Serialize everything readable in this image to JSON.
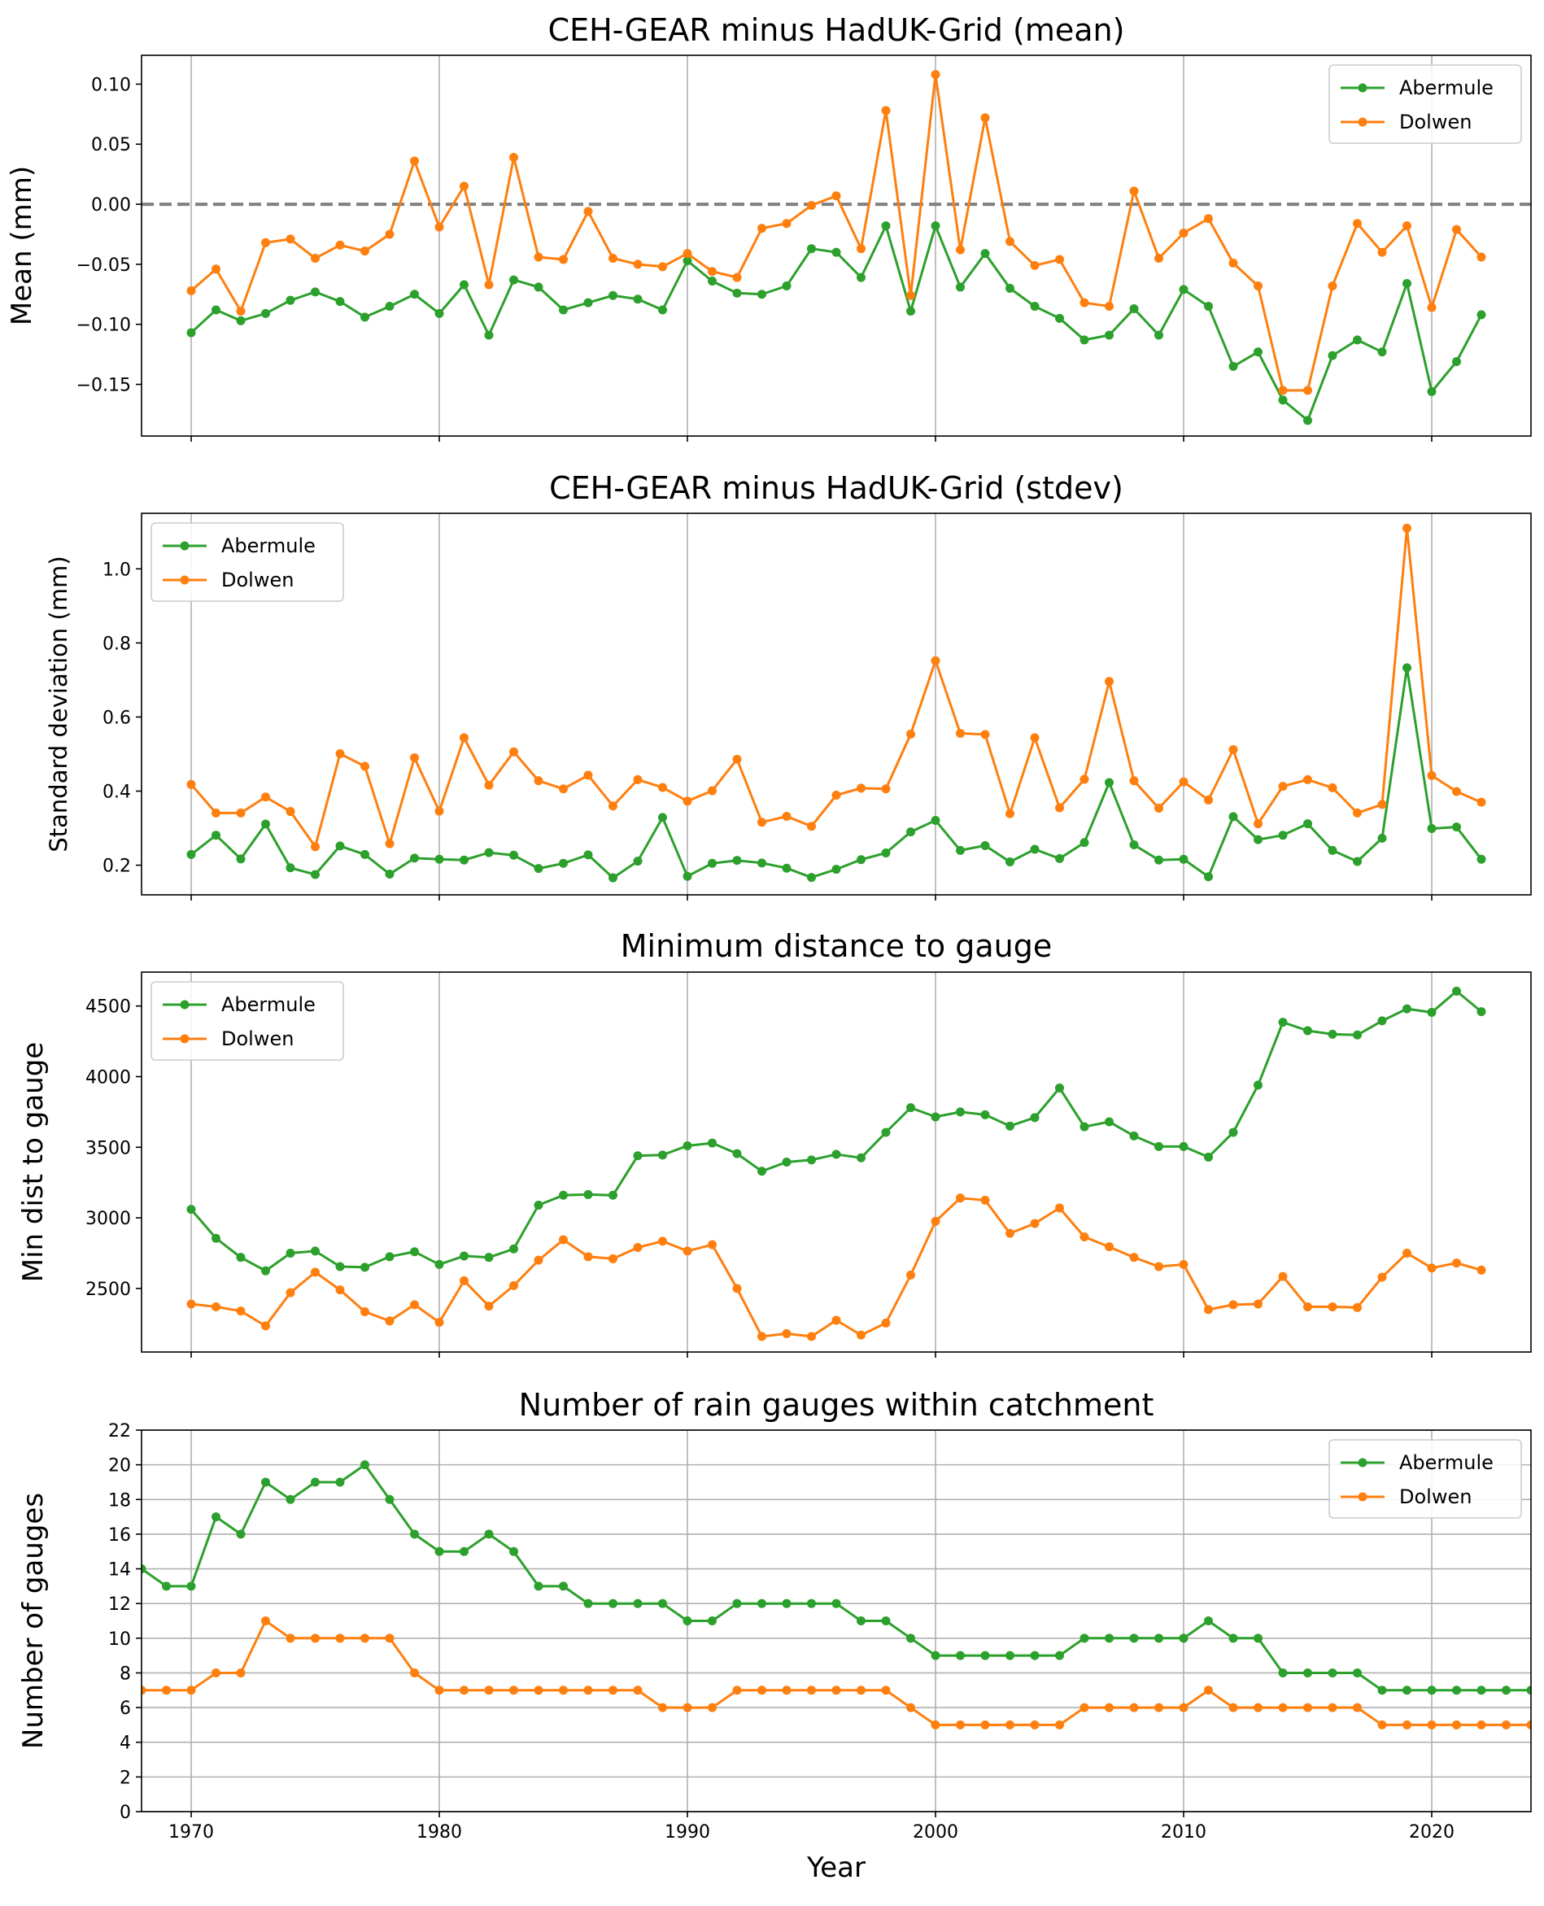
{
  "colors": {
    "abermule": "#2ca02c",
    "dolwen": "#ff7f0e",
    "grid": "#b0b0b0",
    "zero_line": "#808080"
  },
  "chart_data": [
    {
      "type": "line",
      "title": "CEH-GEAR minus HadUK-Grid (mean)",
      "xlabel": "",
      "ylabel": "Mean (mm)",
      "xlim": [
        1968,
        2024
      ],
      "ylim": [
        -0.193,
        0.124
      ],
      "yticks": [
        0.1,
        0.05,
        0.0,
        -0.05,
        -0.1,
        -0.15
      ],
      "ytick_labels": [
        "0.10",
        "0.05",
        "0.00",
        "−0.05",
        "−0.10",
        "−0.15"
      ],
      "xticks": [
        1970,
        1980,
        1990,
        2000,
        2010,
        2020
      ],
      "grid": "x",
      "hline": 0.0,
      "legend": "upper-right",
      "x": [
        1970,
        1971,
        1972,
        1973,
        1974,
        1975,
        1976,
        1977,
        1978,
        1979,
        1980,
        1981,
        1982,
        1983,
        1984,
        1985,
        1986,
        1987,
        1988,
        1989,
        1990,
        1991,
        1992,
        1993,
        1994,
        1995,
        1996,
        1997,
        1998,
        1999,
        2000,
        2001,
        2002,
        2003,
        2004,
        2005,
        2006,
        2007,
        2008,
        2009,
        2010,
        2011,
        2012,
        2013,
        2014,
        2015,
        2016,
        2017,
        2018,
        2019,
        2020,
        2021,
        2022
      ],
      "series": [
        {
          "name": "Abermule",
          "color": "#2ca02c",
          "values": [
            -0.107,
            -0.088,
            -0.097,
            -0.091,
            -0.08,
            -0.073,
            -0.081,
            -0.094,
            -0.085,
            -0.075,
            -0.091,
            -0.067,
            -0.109,
            -0.063,
            -0.069,
            -0.088,
            -0.082,
            -0.076,
            -0.079,
            -0.088,
            -0.047,
            -0.064,
            -0.074,
            -0.075,
            -0.068,
            -0.037,
            -0.04,
            -0.061,
            -0.018,
            -0.089,
            -0.018,
            -0.069,
            -0.041,
            -0.07,
            -0.085,
            -0.095,
            -0.113,
            -0.109,
            -0.087,
            -0.109,
            -0.071,
            -0.085,
            -0.135,
            -0.123,
            -0.163,
            -0.18,
            -0.126,
            -0.113,
            -0.123,
            -0.066,
            -0.156,
            -0.131,
            -0.092
          ]
        },
        {
          "name": "Dolwen",
          "color": "#ff7f0e",
          "values": [
            -0.072,
            -0.054,
            -0.089,
            -0.032,
            -0.029,
            -0.045,
            -0.034,
            -0.039,
            -0.025,
            0.036,
            -0.019,
            0.015,
            -0.067,
            0.039,
            -0.044,
            -0.046,
            -0.006,
            -0.045,
            -0.05,
            -0.052,
            -0.041,
            -0.056,
            -0.061,
            -0.02,
            -0.016,
            -0.001,
            0.007,
            -0.037,
            0.078,
            -0.076,
            0.108,
            -0.038,
            0.072,
            -0.031,
            -0.051,
            -0.046,
            -0.082,
            -0.085,
            0.011,
            -0.045,
            -0.024,
            -0.012,
            -0.049,
            -0.068,
            -0.155,
            -0.155,
            -0.068,
            -0.016,
            -0.04,
            -0.018,
            -0.086,
            -0.021,
            -0.044
          ]
        }
      ]
    },
    {
      "type": "line",
      "title": "CEH-GEAR minus HadUK-Grid (stdev)",
      "xlabel": "",
      "ylabel": "Standard deviation (mm)",
      "xlim": [
        1968,
        2024
      ],
      "ylim": [
        0.12,
        1.15
      ],
      "yticks": [
        0.2,
        0.4,
        0.6,
        0.8,
        1.0
      ],
      "ytick_labels": [
        "0.2",
        "0.4",
        "0.6",
        "0.8",
        "1.0"
      ],
      "xticks": [
        1970,
        1980,
        1990,
        2000,
        2010,
        2020
      ],
      "grid": "x",
      "legend": "upper-left",
      "x": [
        1970,
        1971,
        1972,
        1973,
        1974,
        1975,
        1976,
        1977,
        1978,
        1979,
        1980,
        1981,
        1982,
        1983,
        1984,
        1985,
        1986,
        1987,
        1988,
        1989,
        1990,
        1991,
        1992,
        1993,
        1994,
        1995,
        1996,
        1997,
        1998,
        1999,
        2000,
        2001,
        2002,
        2003,
        2004,
        2005,
        2006,
        2007,
        2008,
        2009,
        2010,
        2011,
        2012,
        2013,
        2014,
        2015,
        2016,
        2017,
        2018,
        2019,
        2020,
        2021,
        2022
      ],
      "series": [
        {
          "name": "Abermule",
          "color": "#2ca02c",
          "values": [
            0.229,
            0.281,
            0.217,
            0.311,
            0.193,
            0.175,
            0.252,
            0.229,
            0.176,
            0.219,
            0.216,
            0.214,
            0.234,
            0.227,
            0.191,
            0.205,
            0.228,
            0.166,
            0.211,
            0.329,
            0.17,
            0.205,
            0.213,
            0.206,
            0.192,
            0.167,
            0.189,
            0.215,
            0.233,
            0.29,
            0.321,
            0.24,
            0.253,
            0.209,
            0.243,
            0.218,
            0.261,
            0.423,
            0.255,
            0.214,
            0.216,
            0.169,
            0.331,
            0.269,
            0.281,
            0.312,
            0.24,
            0.21,
            0.273,
            0.733,
            0.299,
            0.303,
            0.216
          ]
        },
        {
          "name": "Dolwen",
          "color": "#ff7f0e",
          "values": [
            0.418,
            0.341,
            0.341,
            0.384,
            0.345,
            0.25,
            0.501,
            0.467,
            0.258,
            0.49,
            0.346,
            0.544,
            0.416,
            0.506,
            0.428,
            0.406,
            0.443,
            0.36,
            0.431,
            0.41,
            0.373,
            0.401,
            0.486,
            0.316,
            0.332,
            0.305,
            0.389,
            0.408,
            0.406,
            0.554,
            0.752,
            0.556,
            0.553,
            0.339,
            0.544,
            0.355,
            0.432,
            0.696,
            0.428,
            0.354,
            0.425,
            0.376,
            0.512,
            0.312,
            0.413,
            0.431,
            0.409,
            0.341,
            0.364,
            1.11,
            0.442,
            0.399,
            0.37
          ]
        }
      ]
    },
    {
      "type": "line",
      "title": "Minimum distance to gauge",
      "xlabel": "",
      "ylabel": "Min dist to gauge",
      "xlim": [
        1968,
        2024
      ],
      "ylim": [
        2050,
        4740
      ],
      "yticks": [
        2500,
        3000,
        3500,
        4000,
        4500
      ],
      "ytick_labels": [
        "2500",
        "3000",
        "3500",
        "4000",
        "4500"
      ],
      "xticks": [
        1970,
        1980,
        1990,
        2000,
        2010,
        2020
      ],
      "grid": "x",
      "legend": "upper-left",
      "x": [
        1970,
        1971,
        1972,
        1973,
        1974,
        1975,
        1976,
        1977,
        1978,
        1979,
        1980,
        1981,
        1982,
        1983,
        1984,
        1985,
        1986,
        1987,
        1988,
        1989,
        1990,
        1991,
        1992,
        1993,
        1994,
        1995,
        1996,
        1997,
        1998,
        1999,
        2000,
        2001,
        2002,
        2003,
        2004,
        2005,
        2006,
        2007,
        2008,
        2009,
        2010,
        2011,
        2012,
        2013,
        2014,
        2015,
        2016,
        2017,
        2018,
        2019,
        2020,
        2021,
        2022
      ],
      "series": [
        {
          "name": "Abermule",
          "color": "#2ca02c",
          "values": [
            3060,
            2855,
            2720,
            2625,
            2750,
            2765,
            2655,
            2650,
            2725,
            2760,
            2670,
            2730,
            2720,
            2780,
            3090,
            3160,
            3165,
            3160,
            3440,
            3445,
            3510,
            3530,
            3455,
            3330,
            3395,
            3410,
            3450,
            3425,
            3605,
            3780,
            3715,
            3750,
            3730,
            3650,
            3710,
            3920,
            3645,
            3680,
            3580,
            3505,
            3505,
            3430,
            3605,
            3940,
            4385,
            4325,
            4300,
            4295,
            4395,
            4480,
            4455,
            4605,
            4460
          ]
        },
        {
          "name": "Dolwen",
          "color": "#ff7f0e",
          "values": [
            2390,
            2370,
            2340,
            2235,
            2470,
            2615,
            2490,
            2335,
            2270,
            2385,
            2260,
            2555,
            2375,
            2520,
            2700,
            2845,
            2725,
            2710,
            2790,
            2835,
            2765,
            2810,
            2500,
            2160,
            2180,
            2160,
            2275,
            2170,
            2255,
            2595,
            2975,
            3140,
            3125,
            2890,
            2960,
            3070,
            2865,
            2795,
            2720,
            2655,
            2670,
            2350,
            2385,
            2390,
            2585,
            2370,
            2370,
            2365,
            2580,
            2750,
            2645,
            2680,
            2630
          ]
        }
      ]
    },
    {
      "type": "line",
      "title": "Number of rain gauges within catchment",
      "xlabel": "Year",
      "ylabel": "Number of gauges",
      "xlim": [
        1968,
        2024
      ],
      "ylim": [
        0,
        22
      ],
      "yticks": [
        0,
        2,
        4,
        6,
        8,
        10,
        12,
        14,
        16,
        18,
        20,
        22
      ],
      "ytick_labels": [
        "0",
        "2",
        "4",
        "6",
        "8",
        "10",
        "12",
        "14",
        "16",
        "18",
        "20",
        "22"
      ],
      "xticks": [
        1970,
        1980,
        1990,
        2000,
        2010,
        2020
      ],
      "xtick_labels": [
        "1970",
        "1980",
        "1990",
        "2000",
        "2010",
        "2020"
      ],
      "grid": "both",
      "legend": "upper-right",
      "x": [
        1968,
        1969,
        1970,
        1971,
        1972,
        1973,
        1974,
        1975,
        1976,
        1977,
        1978,
        1979,
        1980,
        1981,
        1982,
        1983,
        1984,
        1985,
        1986,
        1987,
        1988,
        1989,
        1990,
        1991,
        1992,
        1993,
        1994,
        1995,
        1996,
        1997,
        1998,
        1999,
        2000,
        2001,
        2002,
        2003,
        2004,
        2005,
        2006,
        2007,
        2008,
        2009,
        2010,
        2011,
        2012,
        2013,
        2014,
        2015,
        2016,
        2017,
        2018,
        2019,
        2020,
        2021,
        2022,
        2023,
        2024
      ],
      "series": [
        {
          "name": "Abermule",
          "color": "#2ca02c",
          "values": [
            14,
            13,
            13,
            17,
            16,
            19,
            18,
            19,
            19,
            20,
            18,
            16,
            15,
            15,
            16,
            15,
            13,
            13,
            12,
            12,
            12,
            12,
            11,
            11,
            12,
            12,
            12,
            12,
            12,
            11,
            11,
            10,
            9,
            9,
            9,
            9,
            9,
            9,
            10,
            10,
            10,
            10,
            10,
            11,
            10,
            10,
            8,
            8,
            8,
            8,
            7,
            7,
            7,
            7,
            7,
            7,
            7
          ]
        },
        {
          "name": "Dolwen",
          "color": "#ff7f0e",
          "values": [
            7,
            7,
            7,
            8,
            8,
            11,
            10,
            10,
            10,
            10,
            10,
            8,
            7,
            7,
            7,
            7,
            7,
            7,
            7,
            7,
            7,
            6,
            6,
            6,
            7,
            7,
            7,
            7,
            7,
            7,
            7,
            6,
            5,
            5,
            5,
            5,
            5,
            5,
            6,
            6,
            6,
            6,
            6,
            7,
            6,
            6,
            6,
            6,
            6,
            6,
            5,
            5,
            5,
            5,
            5,
            5,
            5
          ]
        }
      ]
    }
  ]
}
